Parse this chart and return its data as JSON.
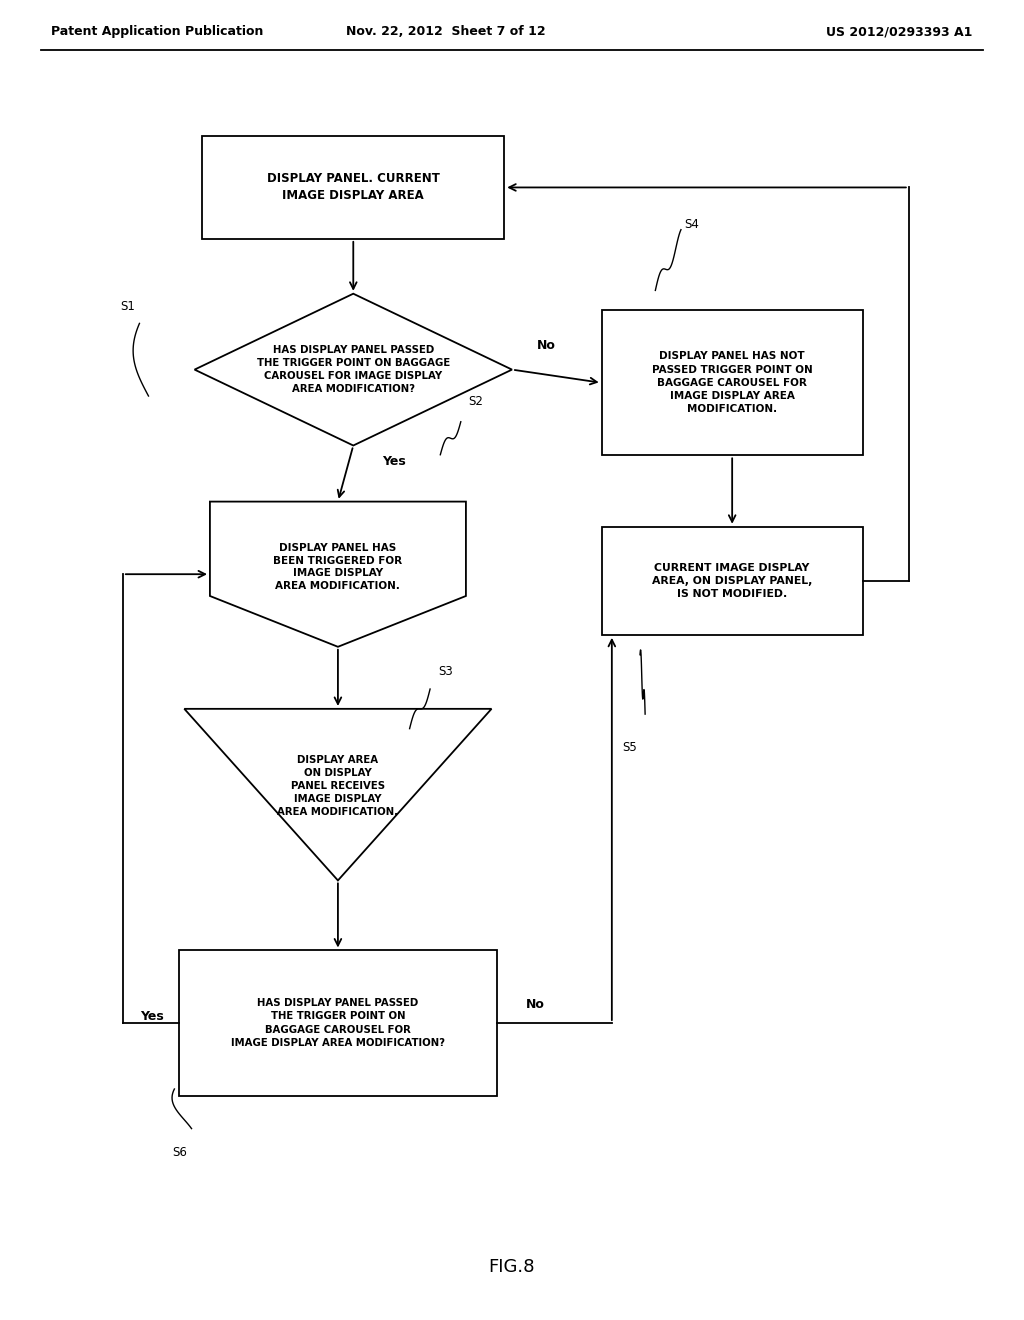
{
  "title_line1": "Patent Application Publication",
  "title_line2": "Nov. 22, 2012  Sheet 7 of 12",
  "title_line3": "US 2012/0293393 A1",
  "fig_label": "FIG.8",
  "background_color": "#ffffff"
}
